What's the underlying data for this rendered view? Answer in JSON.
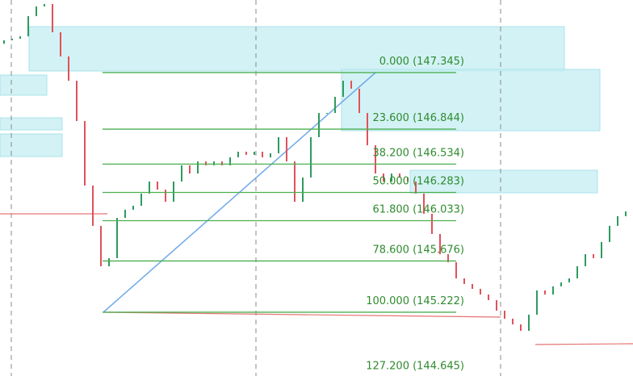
{
  "chart_data": {
    "type": "candlestick",
    "ylim": [
      144.657,
      147.988
    ],
    "open": [
      147.6,
      147.631,
      147.645,
      147.666,
      147.845,
      147.931,
      147.952,
      147.702,
      147.488,
      147.273,
      146.916,
      146.344,
      145.987,
      145.629,
      145.701,
      146.058,
      146.13,
      146.165,
      146.273,
      146.38,
      146.308,
      146.201,
      146.38,
      146.523,
      146.451,
      146.558,
      146.523,
      146.558,
      146.523,
      146.594,
      146.644,
      146.616,
      146.644,
      146.594,
      146.63,
      146.773,
      146.558,
      146.201,
      146.415,
      146.773,
      146.987,
      146.987,
      147.13,
      147.273,
      147.202,
      146.987,
      146.701,
      146.451,
      146.38,
      146.451,
      146.415,
      146.38,
      146.273,
      146.094,
      145.915,
      145.736,
      145.665,
      145.522,
      145.472,
      145.429,
      145.379,
      145.329,
      145.236,
      145.165,
      145.114,
      145.057,
      145.2,
      145.415,
      145.379,
      145.451,
      145.486,
      145.522,
      145.629,
      145.736,
      145.701,
      145.844,
      145.987,
      146.073
    ],
    "close": [
      147.631,
      147.645,
      147.666,
      147.845,
      147.931,
      147.952,
      147.702,
      147.488,
      147.273,
      146.916,
      146.344,
      145.987,
      145.629,
      145.701,
      146.058,
      146.13,
      146.165,
      146.273,
      146.38,
      146.308,
      146.201,
      146.38,
      146.523,
      146.451,
      146.558,
      146.523,
      146.558,
      146.523,
      146.594,
      146.644,
      146.616,
      146.644,
      146.594,
      146.63,
      146.773,
      146.558,
      146.201,
      146.415,
      146.773,
      146.987,
      146.987,
      147.13,
      147.273,
      147.202,
      146.987,
      146.701,
      146.451,
      146.38,
      146.451,
      146.415,
      146.38,
      146.273,
      146.094,
      145.915,
      145.736,
      145.665,
      145.522,
      145.472,
      145.429,
      145.379,
      145.329,
      145.236,
      145.165,
      145.114,
      145.057,
      145.2,
      145.415,
      145.379,
      145.451,
      145.486,
      145.522,
      145.629,
      145.736,
      145.701,
      145.844,
      145.987,
      146.073,
      146.115
    ],
    "up_color": "#2e9b5e",
    "down_color": "#e0525a",
    "level_color": "#4caf50",
    "fib_levels": [
      {
        "value": 147.345,
        "label": "0.000 (147.345)"
      },
      {
        "value": 146.844,
        "label": "23.600 (146.844)"
      },
      {
        "value": 146.534,
        "label": "38.200 (146.534)"
      },
      {
        "value": 146.283,
        "label": "50.000 (146.283)"
      },
      {
        "value": 146.033,
        "label": "61.800 (146.033)"
      },
      {
        "value": 145.676,
        "label": "78.600 (145.676)"
      },
      {
        "value": 145.222,
        "label": "100.000 (145.222)"
      },
      {
        "value": 144.645,
        "label": "127.200 (144.645)"
      }
    ]
  }
}
